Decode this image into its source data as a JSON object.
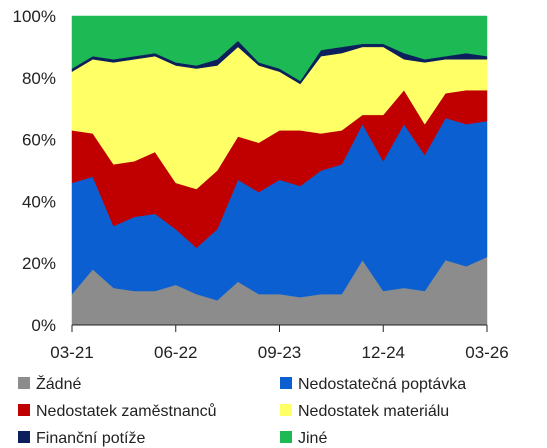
{
  "chart_data": {
    "type": "area",
    "stacked": true,
    "percent": true,
    "title": "",
    "xlabel": "",
    "ylabel": "",
    "ylim": [
      0,
      100
    ],
    "yticks": [
      0,
      20,
      40,
      60,
      80,
      100
    ],
    "ytick_labels": [
      "0%",
      "20%",
      "40%",
      "60%",
      "80%",
      "100%"
    ],
    "x_tick_labels": [
      {
        "index": 0,
        "label": "03-21"
      },
      {
        "index": 5,
        "label": "06-22"
      },
      {
        "index": 10,
        "label": "09-23"
      },
      {
        "index": 15,
        "label": "12-24"
      },
      {
        "index": 20,
        "label": "03-26"
      }
    ],
    "x": [
      "03-21",
      "06-21",
      "09-21",
      "12-21",
      "03-22",
      "06-22",
      "09-22",
      "12-22",
      "03-23",
      "06-23",
      "09-23",
      "12-23",
      "03-24",
      "06-24",
      "09-24",
      "12-24",
      "03-25",
      "06-25",
      "09-25",
      "12-25",
      "03-26"
    ],
    "grid": false,
    "legend": "bottom",
    "series": [
      {
        "name": "Žádné",
        "color": "#8c8c8c",
        "values": [
          10,
          18,
          12,
          11,
          11,
          13,
          10,
          8,
          14,
          10,
          10,
          9,
          10,
          10,
          21,
          11,
          12,
          11,
          21,
          19,
          22
        ]
      },
      {
        "name": "Nedostatečná poptávka",
        "color": "#0b5fd1",
        "values": [
          36,
          30,
          20,
          24,
          25,
          18,
          15,
          23,
          33,
          33,
          37,
          36,
          40,
          42,
          44,
          42,
          53,
          44,
          46,
          46,
          44
        ]
      },
      {
        "name": "Nedostatek zaměstnanců",
        "color": "#c00000",
        "values": [
          17,
          14,
          20,
          18,
          20,
          15,
          19,
          19,
          14,
          16,
          16,
          18,
          12,
          11,
          3,
          15,
          11,
          10,
          8,
          11,
          10
        ]
      },
      {
        "name": "Nedostatek materiálu",
        "color": "#ffff66",
        "values": [
          19,
          24,
          33,
          33,
          31,
          38,
          39,
          34,
          29,
          25,
          19,
          15,
          25,
          25,
          22,
          22,
          10,
          20,
          11,
          10,
          10
        ]
      },
      {
        "name": "Finanční potíže",
        "color": "#0a1f5c",
        "values": [
          1,
          1,
          1,
          1,
          1,
          1,
          1,
          2,
          2,
          1,
          1,
          1,
          2,
          2,
          1,
          1,
          2,
          1,
          1,
          2,
          1
        ]
      },
      {
        "name": "Jiné",
        "color": "#1db954",
        "values": [
          17,
          13,
          14,
          13,
          12,
          15,
          16,
          14,
          8,
          15,
          17,
          21,
          11,
          10,
          9,
          9,
          12,
          14,
          13,
          12,
          13
        ]
      }
    ]
  }
}
